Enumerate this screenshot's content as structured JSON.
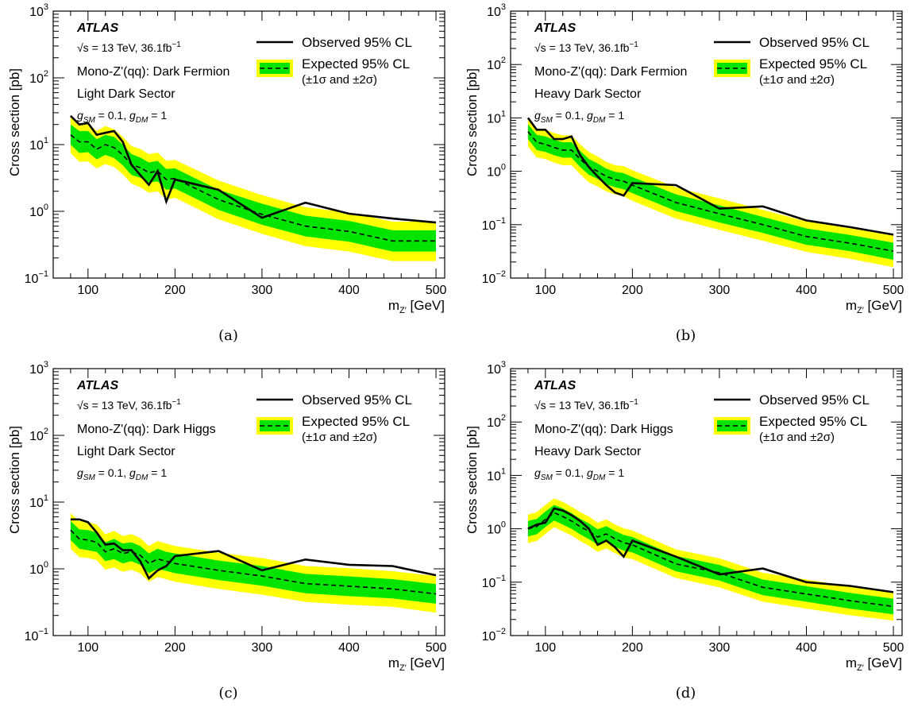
{
  "common": {
    "experiment": "ATLAS",
    "energy_line": "√s = 13 TeV, 36.1fb",
    "lumi_sup": "−1",
    "coupling_line": "g_SM = 0.1, g_DM = 1",
    "legend_observed": "Observed 95% CL",
    "legend_expected_1": "Expected 95% CL",
    "legend_expected_2": "(±1σ and ±2σ)",
    "ylabel": "Cross section [pb]",
    "xlabel": "m_Z′ [GeV]",
    "colors": {
      "band2": "#ffff00",
      "band1": "#00e400",
      "line": "#000000"
    }
  },
  "chart_data": [
    {
      "caption": "(a)",
      "type": "line",
      "model_line": "Mono-Z'(qq): Dark Fermion",
      "sector_line": "Light Dark Sector",
      "xlim": [
        60,
        510
      ],
      "ylim": [
        0.1,
        1000
      ],
      "yscale": "log",
      "xticks": [
        100,
        200,
        300,
        400,
        500
      ],
      "x": [
        80,
        90,
        100,
        110,
        120,
        130,
        140,
        150,
        160,
        170,
        180,
        190,
        200,
        250,
        300,
        350,
        400,
        450,
        500
      ],
      "observed": [
        27,
        20,
        21,
        14,
        15,
        16,
        11,
        5,
        3.5,
        2.5,
        4,
        1.4,
        3,
        2.1,
        0.8,
        1.35,
        0.92,
        0.78,
        0.68
      ],
      "expected": [
        14,
        11,
        11,
        8.5,
        10,
        9,
        7,
        5,
        4.5,
        3.8,
        4,
        3,
        3.1,
        1.5,
        0.9,
        0.6,
        0.5,
        0.36,
        0.36
      ],
      "band1_lo": [
        10,
        7.5,
        7.7,
        6,
        7,
        6.3,
        4.9,
        3.5,
        3.2,
        2.7,
        2.8,
        2.1,
        2.2,
        1.05,
        0.63,
        0.42,
        0.35,
        0.25,
        0.25
      ],
      "band1_hi": [
        20,
        16,
        16,
        12,
        14,
        13,
        10,
        7.2,
        6.4,
        5.4,
        5.7,
        4.3,
        4.4,
        2.1,
        1.3,
        0.86,
        0.72,
        0.52,
        0.52
      ],
      "band2_lo": [
        7.5,
        5.5,
        5.6,
        4.4,
        5.1,
        4.6,
        3.6,
        2.6,
        2.3,
        1.9,
        2.0,
        1.5,
        1.6,
        0.76,
        0.46,
        0.3,
        0.25,
        0.18,
        0.18
      ],
      "band2_hi": [
        27,
        21,
        21,
        16,
        19,
        17,
        13,
        9.5,
        8.6,
        7.2,
        7.6,
        5.7,
        5.9,
        2.9,
        1.75,
        1.15,
        0.96,
        0.7,
        0.7
      ]
    },
    {
      "caption": "(b)",
      "type": "line",
      "model_line": "Mono-Z'(qq): Dark Fermion",
      "sector_line": "Heavy Dark Sector",
      "xlim": [
        60,
        510
      ],
      "ylim": [
        0.01,
        1000
      ],
      "yscale": "log",
      "xticks": [
        100,
        200,
        300,
        400,
        500
      ],
      "x": [
        80,
        90,
        100,
        110,
        120,
        130,
        140,
        150,
        160,
        170,
        180,
        190,
        200,
        250,
        300,
        350,
        400,
        450,
        500
      ],
      "observed": [
        10,
        6,
        6,
        4,
        4,
        4.5,
        2,
        1.2,
        0.8,
        0.55,
        0.4,
        0.35,
        0.6,
        0.55,
        0.2,
        0.22,
        0.12,
        0.09,
        0.065
      ],
      "expected": [
        5.5,
        3.5,
        3.2,
        2.8,
        2.5,
        2.5,
        1.7,
        1.2,
        1.0,
        0.8,
        0.7,
        0.65,
        0.55,
        0.26,
        0.16,
        0.1,
        0.06,
        0.045,
        0.032
      ],
      "band1_lo": [
        4,
        2.5,
        2.3,
        2,
        1.8,
        1.8,
        1.2,
        0.86,
        0.72,
        0.57,
        0.5,
        0.46,
        0.39,
        0.18,
        0.11,
        0.07,
        0.042,
        0.032,
        0.022
      ],
      "band1_hi": [
        7.6,
        4.8,
        4.5,
        3.9,
        3.5,
        3.5,
        2.4,
        1.7,
        1.4,
        1.12,
        0.98,
        0.92,
        0.78,
        0.37,
        0.23,
        0.14,
        0.085,
        0.064,
        0.046
      ],
      "band2_lo": [
        2.9,
        1.8,
        1.7,
        1.45,
        1.3,
        1.3,
        0.88,
        0.62,
        0.52,
        0.42,
        0.37,
        0.34,
        0.28,
        0.13,
        0.08,
        0.05,
        0.031,
        0.023,
        0.016
      ],
      "band2_hi": [
        10,
        6.4,
        6,
        5.2,
        4.7,
        4.7,
        3.2,
        2.3,
        1.9,
        1.5,
        1.3,
        1.25,
        1.05,
        0.5,
        0.31,
        0.19,
        0.115,
        0.086,
        0.062
      ]
    },
    {
      "caption": "(c)",
      "type": "line",
      "model_line": "Mono-Z'(qq): Dark Higgs",
      "sector_line": "Light Dark Sector",
      "xlim": [
        60,
        510
      ],
      "ylim": [
        0.1,
        1000
      ],
      "yscale": "log",
      "xticks": [
        100,
        200,
        300,
        400,
        500
      ],
      "x": [
        80,
        90,
        100,
        110,
        120,
        130,
        140,
        150,
        160,
        170,
        180,
        190,
        200,
        250,
        300,
        350,
        400,
        450,
        500
      ],
      "observed": [
        5.5,
        5.5,
        5,
        3.5,
        2.3,
        2.4,
        1.9,
        1.9,
        1.3,
        0.72,
        0.95,
        1.1,
        1.55,
        1.85,
        0.95,
        1.38,
        1.15,
        1.1,
        0.8
      ],
      "expected": [
        3.8,
        2.8,
        2.7,
        2.5,
        1.8,
        2.0,
        1.7,
        1.8,
        1.6,
        1.2,
        1.4,
        1.3,
        1.2,
        0.95,
        0.78,
        0.6,
        0.55,
        0.5,
        0.42
      ],
      "band1_lo": [
        2.7,
        2.0,
        1.9,
        1.8,
        1.3,
        1.4,
        1.2,
        1.3,
        1.15,
        0.86,
        1.0,
        0.93,
        0.86,
        0.68,
        0.56,
        0.43,
        0.39,
        0.36,
        0.3
      ],
      "band1_hi": [
        5.2,
        3.9,
        3.8,
        3.5,
        2.5,
        2.8,
        2.4,
        2.5,
        2.2,
        1.7,
        2.0,
        1.8,
        1.7,
        1.33,
        1.1,
        0.84,
        0.77,
        0.7,
        0.59
      ],
      "band2_lo": [
        2.0,
        1.5,
        1.45,
        1.35,
        0.97,
        1.05,
        0.9,
        0.97,
        0.86,
        0.64,
        0.75,
        0.7,
        0.64,
        0.5,
        0.41,
        0.32,
        0.29,
        0.27,
        0.22
      ],
      "band2_hi": [
        6.8,
        5.2,
        5,
        4.6,
        3.3,
        3.7,
        3.1,
        3.3,
        2.9,
        2.2,
        2.6,
        2.4,
        2.2,
        1.75,
        1.45,
        1.1,
        1.02,
        0.92,
        0.78
      ]
    },
    {
      "caption": "(d)",
      "type": "line",
      "model_line": "Mono-Z'(qq): Dark Higgs",
      "sector_line": "Heavy Dark Sector",
      "xlim": [
        60,
        510
      ],
      "ylim": [
        0.01,
        1000
      ],
      "yscale": "log",
      "xticks": [
        100,
        200,
        300,
        400,
        500
      ],
      "x": [
        80,
        90,
        100,
        110,
        120,
        130,
        140,
        150,
        160,
        170,
        180,
        190,
        200,
        250,
        300,
        350,
        400,
        450,
        500
      ],
      "observed": [
        1.0,
        1.2,
        1.3,
        2.4,
        2.2,
        1.8,
        1.4,
        1.0,
        0.5,
        0.6,
        0.45,
        0.3,
        0.6,
        0.3,
        0.14,
        0.18,
        0.1,
        0.085,
        0.065
      ],
      "expected": [
        1.0,
        1.1,
        1.5,
        2.0,
        1.7,
        1.4,
        1.1,
        0.9,
        0.7,
        0.8,
        0.65,
        0.55,
        0.5,
        0.22,
        0.15,
        0.08,
        0.06,
        0.045,
        0.035
      ],
      "band1_lo": [
        0.72,
        0.79,
        1.08,
        1.43,
        1.2,
        1.0,
        0.79,
        0.64,
        0.5,
        0.57,
        0.46,
        0.39,
        0.36,
        0.16,
        0.107,
        0.057,
        0.043,
        0.032,
        0.025
      ],
      "band1_hi": [
        1.4,
        1.53,
        2.1,
        2.8,
        2.4,
        1.96,
        1.54,
        1.26,
        0.98,
        1.12,
        0.91,
        0.77,
        0.7,
        0.31,
        0.21,
        0.112,
        0.084,
        0.063,
        0.049
      ],
      "band2_lo": [
        0.54,
        0.59,
        0.8,
        1.07,
        0.9,
        0.75,
        0.59,
        0.48,
        0.37,
        0.43,
        0.35,
        0.29,
        0.27,
        0.12,
        0.08,
        0.043,
        0.032,
        0.024,
        0.019
      ],
      "band2_hi": [
        1.85,
        2.05,
        2.8,
        3.7,
        3.2,
        2.6,
        2.05,
        1.7,
        1.3,
        1.5,
        1.2,
        1.02,
        0.93,
        0.41,
        0.28,
        0.15,
        0.112,
        0.084,
        0.065
      ]
    }
  ]
}
